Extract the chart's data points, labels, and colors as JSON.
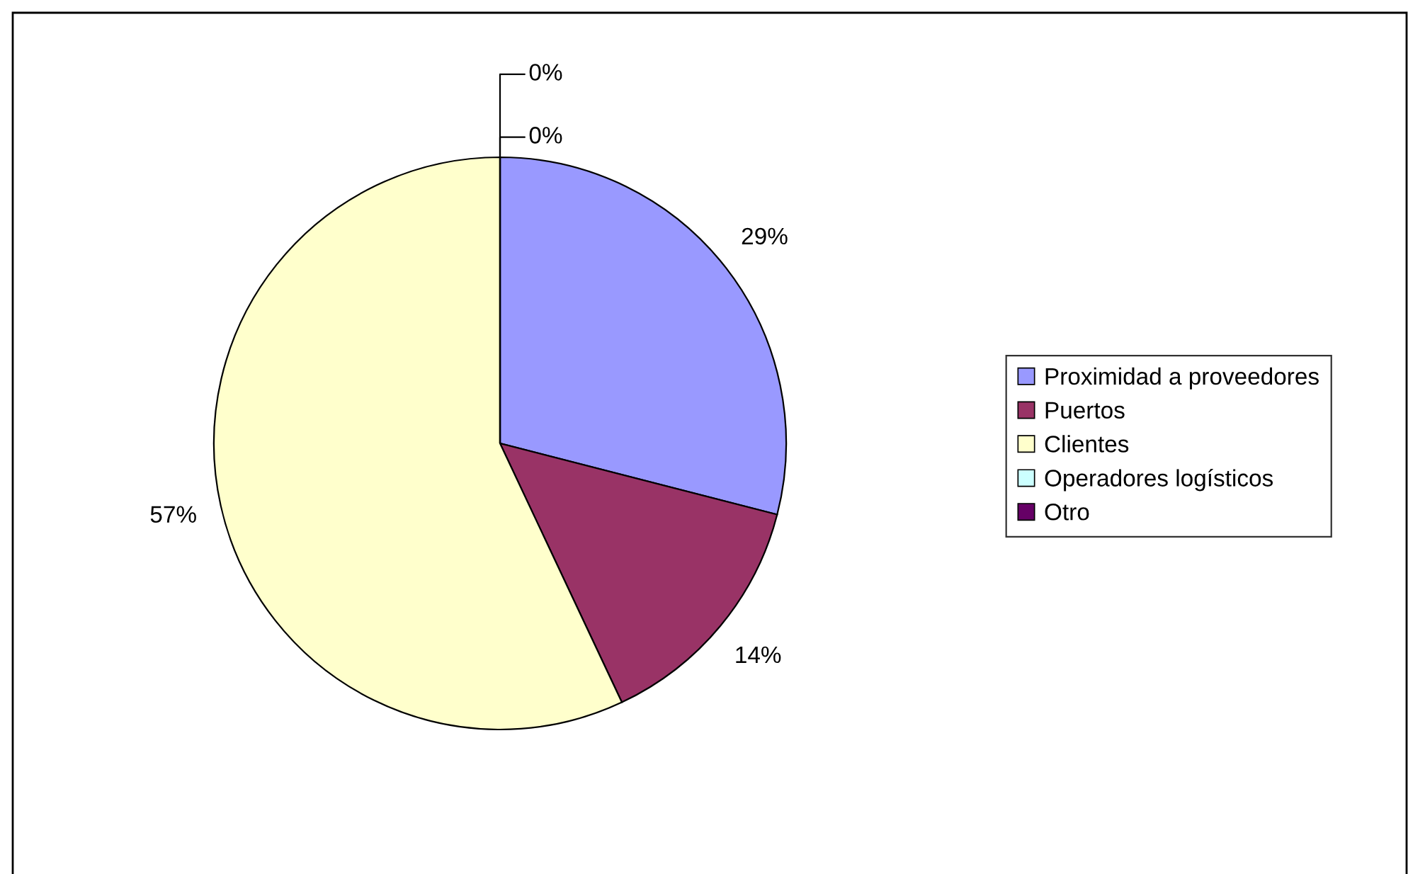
{
  "chart_data": {
    "type": "pie",
    "categories": [
      "Proximidad a proveedores",
      "Puertos",
      "Clientes",
      "Operadores logísticos",
      "Otro"
    ],
    "values": [
      29,
      14,
      57,
      0,
      0
    ],
    "colors": [
      "#9999ff",
      "#993366",
      "#ffffcc",
      "#ccffff",
      "#660066"
    ],
    "value_labels": [
      "29%",
      "14%",
      "57%",
      "0%",
      "0%"
    ],
    "legend": "right"
  }
}
